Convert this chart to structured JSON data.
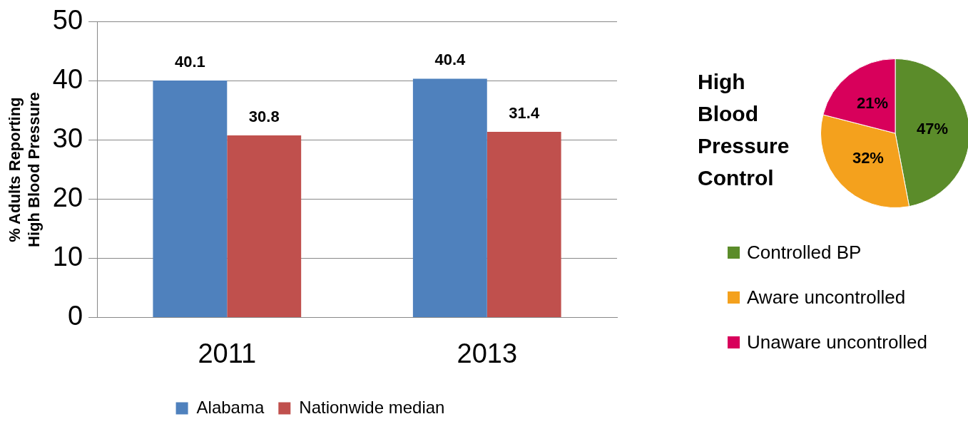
{
  "chart_data": [
    {
      "type": "bar",
      "ylabel": "% Adults Reporting\nHigh Blood Pressure",
      "categories": [
        "2011",
        "2013"
      ],
      "series": [
        {
          "name": "Alabama",
          "color": "#4f81bd",
          "values": [
            40.1,
            40.4
          ]
        },
        {
          "name": "Nationwide median",
          "color": "#c0504d",
          "values": [
            30.8,
            31.4
          ]
        }
      ],
      "ylim": [
        0,
        50
      ],
      "yticks": [
        0,
        10,
        20,
        30,
        40,
        50
      ],
      "grid": "y",
      "legend": "bottom",
      "data_labels": true
    },
    {
      "type": "pie",
      "title": "High Blood Pressure Control",
      "categories": [
        "Controlled BP",
        "Aware uncontrolled",
        "Unaware uncontrolled"
      ],
      "values": [
        47,
        32,
        21
      ],
      "colors": [
        "#5b8c2a",
        "#f4a11d",
        "#d8005b"
      ],
      "value_labels": [
        "47%",
        "32%",
        "21%"
      ],
      "legend": "bottom"
    }
  ]
}
